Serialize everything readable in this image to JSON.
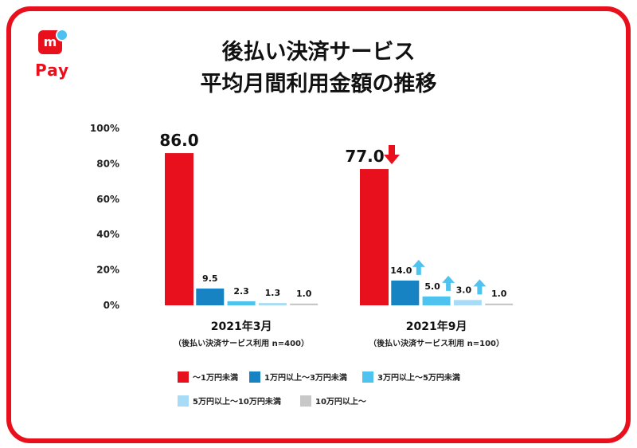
{
  "brand": {
    "logo_mark": "m",
    "logo_text": "Pay"
  },
  "title": {
    "line1": "後払い決済サービス",
    "line2": "平均月間利用金額の推移"
  },
  "chart_data": {
    "type": "bar",
    "y_ticks": [
      "0%",
      "20%",
      "40%",
      "60%",
      "80%",
      "100%"
    ],
    "ylim": [
      0,
      100
    ],
    "groups": [
      {
        "label": "2021年3月",
        "sublabel": "（後払い決済サービス利用 n=400）",
        "values": [
          86.0,
          9.5,
          2.3,
          1.3,
          1.0
        ],
        "value_labels": [
          "86.0",
          "9.5",
          "2.3",
          "1.3",
          "1.0"
        ],
        "trend": [
          "",
          "",
          "",
          "",
          ""
        ]
      },
      {
        "label": "2021年9月",
        "sublabel": "（後払い決済サービス利用 n=100）",
        "values": [
          77.0,
          14.0,
          5.0,
          3.0,
          1.0
        ],
        "value_labels": [
          "77.0",
          "14.0",
          "5.0",
          "3.0",
          "1.0"
        ],
        "trend": [
          "down",
          "up",
          "up",
          "up",
          ""
        ]
      }
    ],
    "series": [
      {
        "name": "〜1万円未満",
        "color": "#e8101c"
      },
      {
        "name": "1万円以上〜3万円未満",
        "color": "#1783c2"
      },
      {
        "name": "3万円以上〜5万円未満",
        "color": "#4ec3f0"
      },
      {
        "name": "5万円以上〜10万円未満",
        "color": "#a8dcf6"
      },
      {
        "name": "10万円以上〜",
        "color": "#c8c8c8"
      }
    ],
    "arrow_colors": {
      "down": "#e8101c",
      "up": "#4ec3f0"
    },
    "legend_position": "bottom"
  }
}
